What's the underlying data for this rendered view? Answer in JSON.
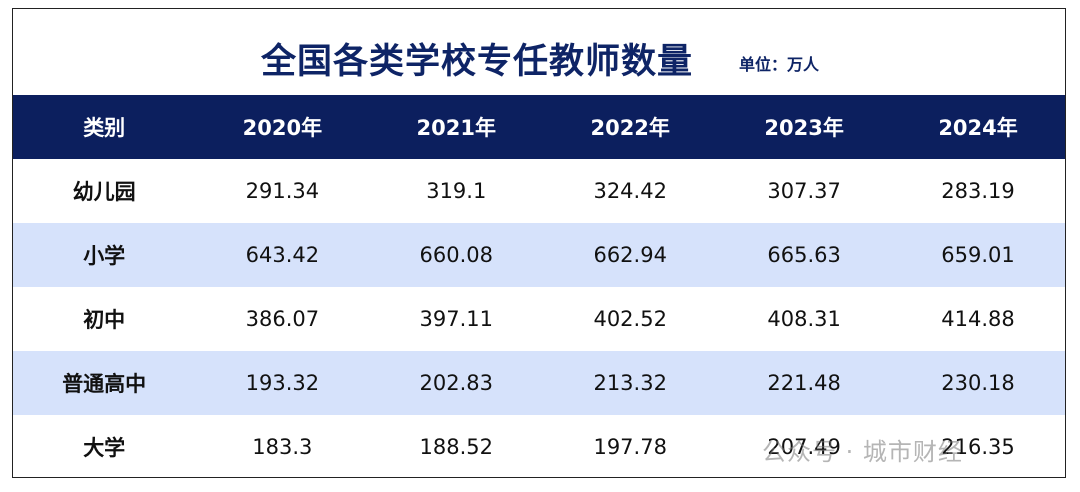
{
  "header": {
    "title": "全国各类学校专任教师数量",
    "unit": "单位：万人"
  },
  "table": {
    "columns": [
      "类别",
      "2020年",
      "2021年",
      "2022年",
      "2023年",
      "2024年"
    ],
    "rows": [
      [
        "幼儿园",
        291.34,
        319.1,
        324.42,
        307.37,
        283.19
      ],
      [
        "小学",
        643.42,
        660.08,
        662.94,
        665.63,
        659.01
      ],
      [
        "初中",
        386.07,
        397.11,
        402.52,
        408.31,
        414.88
      ],
      [
        "普通高中",
        193.32,
        202.83,
        213.32,
        221.48,
        230.18
      ],
      [
        "大学",
        183.3,
        188.52,
        197.78,
        207.49,
        216.35
      ]
    ]
  },
  "watermark": "公众号 · 城市财经"
}
